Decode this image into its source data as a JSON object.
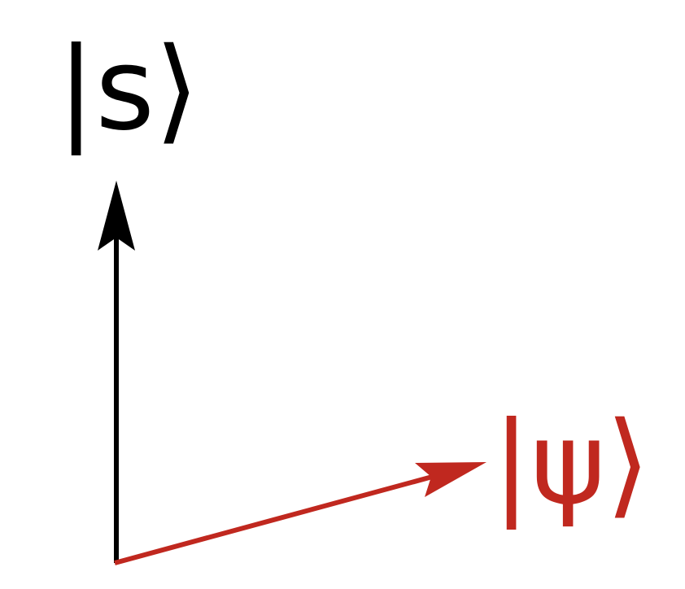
{
  "labels": [
    {
      "text": "|s⟩",
      "color": "#000000"
    },
    {
      "text": "|ψ⟩",
      "color": "#c0281f"
    }
  ]
}
